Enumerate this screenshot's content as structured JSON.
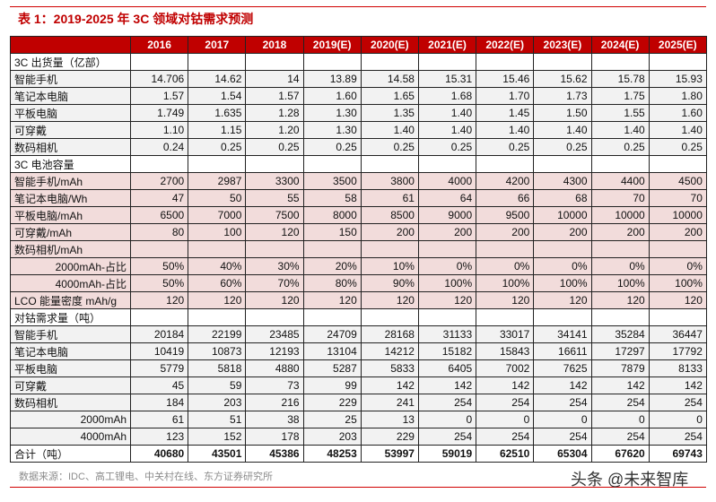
{
  "title": "表 1：2019-2025 年 3C 领域对钴需求预测",
  "columns": [
    "",
    "2016",
    "2017",
    "2018",
    "2019(E)",
    "2020(E)",
    "2021(E)",
    "2022(E)",
    "2023(E)",
    "2024(E)",
    "2025(E)"
  ],
  "rows": [
    {
      "type": "section",
      "label": " 3C 出货量（亿部）",
      "values": [
        "",
        "",
        "",
        "",
        "",
        "",
        "",
        "",
        "",
        ""
      ]
    },
    {
      "type": "ship",
      "label": "智能手机",
      "values": [
        "14.706",
        "14.62",
        "14",
        "13.89",
        "14.58",
        "15.31",
        "15.46",
        "15.62",
        "15.78",
        "15.93"
      ]
    },
    {
      "type": "ship",
      "label": "笔记本电脑",
      "values": [
        "1.57",
        "1.54",
        "1.57",
        "1.60",
        "1.65",
        "1.68",
        "1.70",
        "1.73",
        "1.75",
        "1.80"
      ]
    },
    {
      "type": "ship",
      "label": "平板电脑",
      "values": [
        "1.749",
        "1.635",
        "1.28",
        "1.30",
        "1.35",
        "1.40",
        "1.45",
        "1.50",
        "1.55",
        "1.60"
      ]
    },
    {
      "type": "ship",
      "label": "可穿戴",
      "values": [
        "1.10",
        "1.15",
        "1.20",
        "1.30",
        "1.40",
        "1.40",
        "1.40",
        "1.40",
        "1.40",
        "1.40"
      ]
    },
    {
      "type": "ship",
      "label": "数码相机",
      "values": [
        "0.24",
        "0.25",
        "0.25",
        "0.25",
        "0.25",
        "0.25",
        "0.25",
        "0.25",
        "0.25",
        "0.25"
      ]
    },
    {
      "type": "section",
      "label": "3C 电池容量",
      "values": [
        "",
        "",
        "",
        "",
        "",
        "",
        "",
        "",
        "",
        ""
      ]
    },
    {
      "type": "cap",
      "label": "智能手机/mAh",
      "values": [
        "2700",
        "2987",
        "3300",
        "3500",
        "3800",
        "4000",
        "4200",
        "4300",
        "4400",
        "4500"
      ]
    },
    {
      "type": "cap",
      "label": "笔记本电脑/Wh",
      "values": [
        "47",
        "50",
        "55",
        "58",
        "61",
        "64",
        "66",
        "68",
        "70",
        "70"
      ]
    },
    {
      "type": "cap",
      "label": "平板电脑/mAh",
      "values": [
        "6500",
        "7000",
        "7500",
        "8000",
        "8500",
        "9000",
        "9500",
        "10000",
        "10000",
        "10000"
      ]
    },
    {
      "type": "cap",
      "label": "可穿戴/mAh",
      "values": [
        "80",
        "100",
        "120",
        "150",
        "200",
        "200",
        "200",
        "200",
        "200",
        "200"
      ]
    },
    {
      "type": "cap",
      "label": "数码相机/mAh",
      "values": [
        "",
        "",
        "",
        "",
        "",
        "",
        "",
        "",
        "",
        ""
      ]
    },
    {
      "type": "cap",
      "label": "2000mAh-占比",
      "indent": true,
      "values": [
        "50%",
        "40%",
        "30%",
        "20%",
        "10%",
        "0%",
        "0%",
        "0%",
        "0%",
        "0%"
      ]
    },
    {
      "type": "cap",
      "label": "4000mAh-占比",
      "indent": true,
      "values": [
        "50%",
        "60%",
        "70%",
        "80%",
        "90%",
        "100%",
        "100%",
        "100%",
        "100%",
        "100%"
      ]
    },
    {
      "type": "cap",
      "label": "LCO 能量密度 mAh/g",
      "values": [
        "120",
        "120",
        "120",
        "120",
        "120",
        "120",
        "120",
        "120",
        "120",
        "120"
      ]
    },
    {
      "type": "section",
      "label": "对钴需求量（吨）",
      "values": [
        "",
        "",
        "",
        "",
        "",
        "",
        "",
        "",
        "",
        ""
      ]
    },
    {
      "type": "demand",
      "label": "智能手机",
      "values": [
        "20184",
        "22199",
        "23485",
        "24709",
        "28168",
        "31133",
        "33017",
        "34141",
        "35284",
        "36447"
      ]
    },
    {
      "type": "demand",
      "label": "笔记本电脑",
      "values": [
        "10419",
        "10873",
        "12193",
        "13104",
        "14212",
        "15182",
        "15843",
        "16611",
        "17297",
        "17792"
      ]
    },
    {
      "type": "demand",
      "label": "平板电脑",
      "values": [
        "5779",
        "5818",
        "4880",
        "5287",
        "5833",
        "6405",
        "7002",
        "7625",
        "7879",
        "8133"
      ]
    },
    {
      "type": "demand",
      "label": "可穿戴",
      "values": [
        "45",
        "59",
        "73",
        "99",
        "142",
        "142",
        "142",
        "142",
        "142",
        "142"
      ]
    },
    {
      "type": "demand",
      "label": "数码相机",
      "values": [
        "184",
        "203",
        "216",
        "229",
        "241",
        "254",
        "254",
        "254",
        "254",
        "254"
      ]
    },
    {
      "type": "demand",
      "label": "2000mAh",
      "indent": true,
      "values": [
        "61",
        "51",
        "38",
        "25",
        "13",
        "0",
        "0",
        "0",
        "0",
        "0"
      ]
    },
    {
      "type": "demand",
      "label": "4000mAh",
      "indent": true,
      "values": [
        "123",
        "152",
        "178",
        "203",
        "229",
        "254",
        "254",
        "254",
        "254",
        "254"
      ]
    },
    {
      "type": "total",
      "label": "合计（吨）",
      "values": [
        "40680",
        "43501",
        "45386",
        "48253",
        "53997",
        "59019",
        "62510",
        "65304",
        "67620",
        "69743"
      ]
    }
  ],
  "source": "数据来源：IDC、高工锂电、中关村在线、东方证券研究所",
  "watermark": "头条 @未来智库",
  "colors": {
    "accent": "#c00000",
    "capacity_row": "#f2dcdb",
    "shipment_row": "#f2f2f2"
  }
}
